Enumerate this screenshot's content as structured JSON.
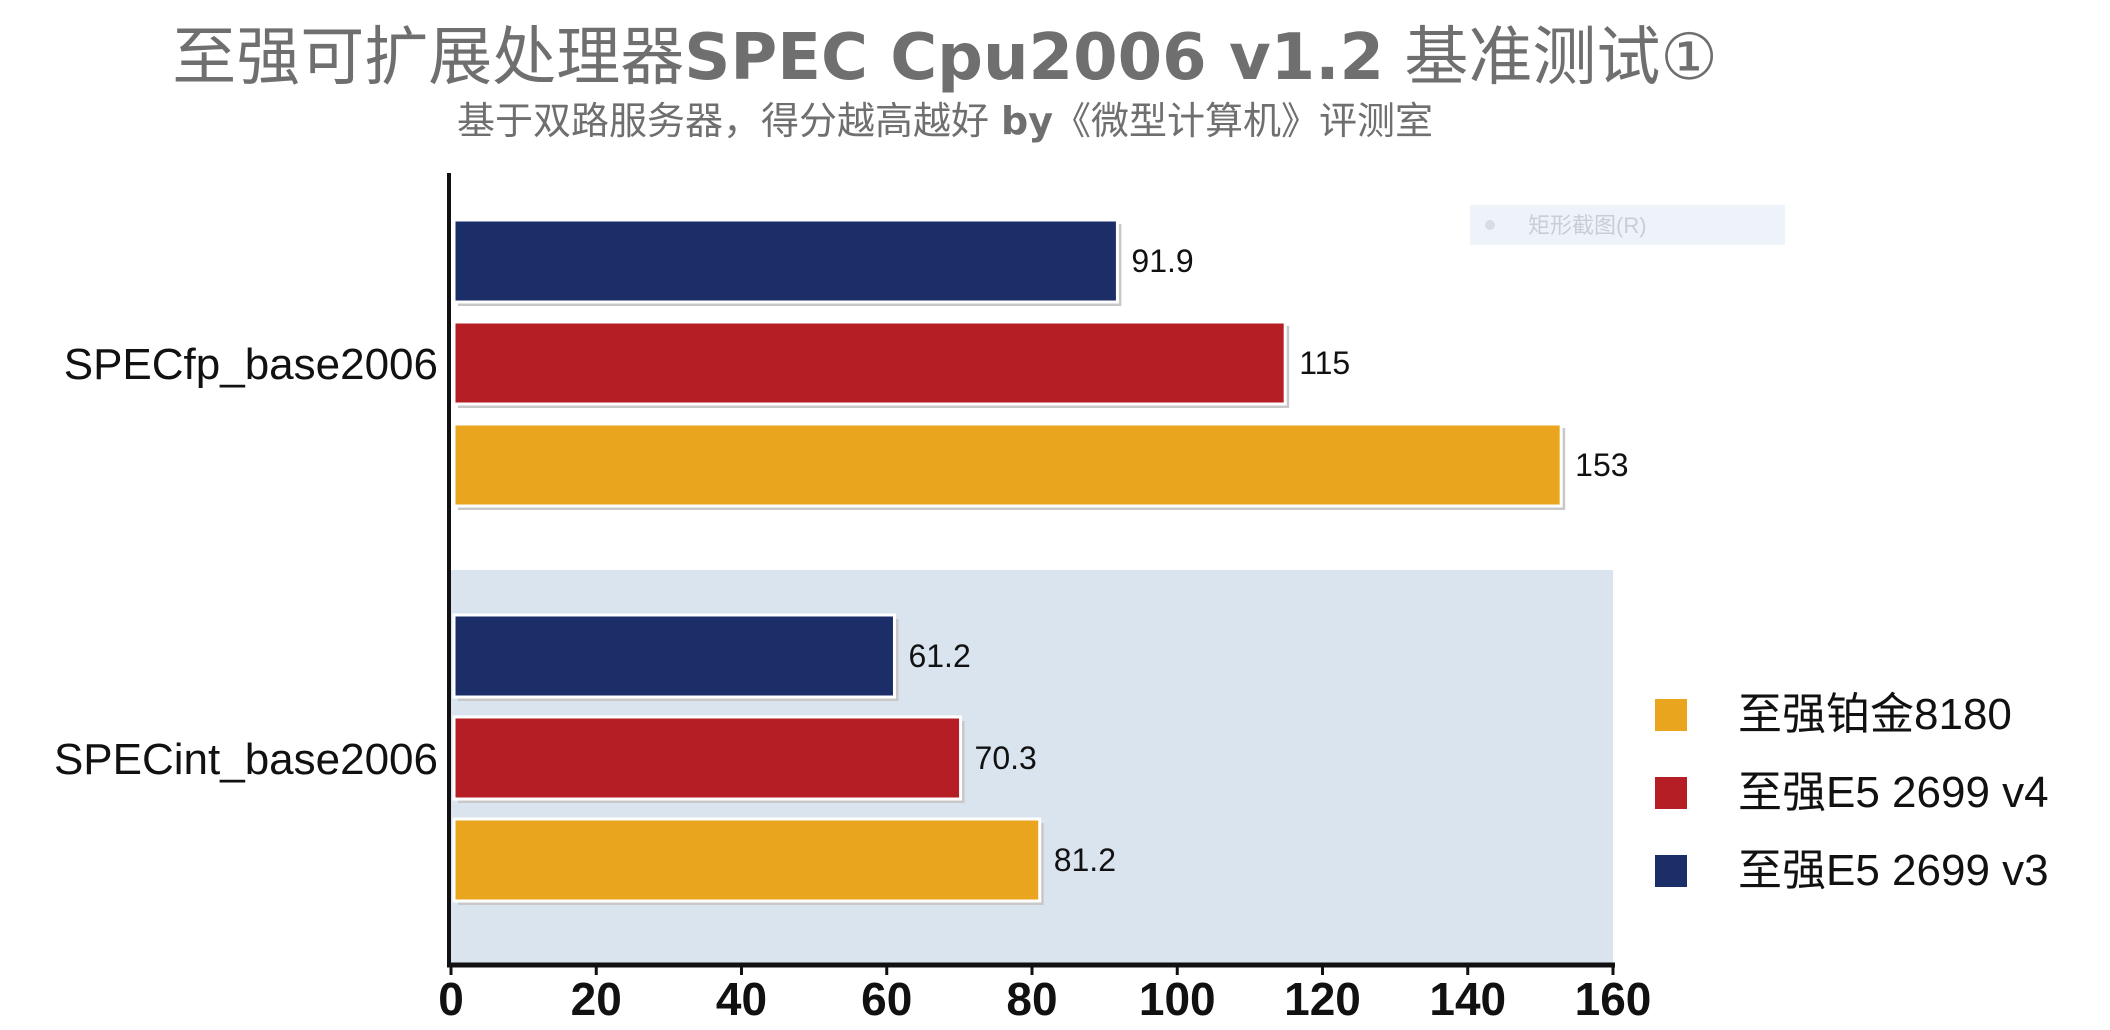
{
  "title": {
    "part1": "至强可扩展处理器",
    "part2": "SPEC Cpu2006 v1.2",
    "part3": " 基准测试①"
  },
  "subtitle": {
    "part1": "基于双路服务器，得分越高越好 ",
    "part2": "by",
    "part3": "《微型计算机》评测室"
  },
  "watermark": "矩形截图(R)",
  "colors": {
    "platinum_8180": "#e8a51d",
    "e5_2699_v4": "#b51e25",
    "e5_2699_v3": "#1c2e68",
    "highlight_band": "#d9e4ef",
    "text": "#111111"
  },
  "chart_data": {
    "type": "bar",
    "orientation": "horizontal",
    "categories": [
      "SPECfp_base2006",
      "SPECint_base2006"
    ],
    "series": [
      {
        "name": "至强E5 2699 v3",
        "color": "#1c2e68",
        "values": [
          91.9,
          61.2
        ],
        "labels": [
          "91.9",
          "61.2"
        ]
      },
      {
        "name": "至强E5 2699 v4",
        "color": "#b51e25",
        "values": [
          115,
          70.3
        ],
        "labels": [
          "115",
          "70.3"
        ]
      },
      {
        "name": "至强铂金8180",
        "color": "#e8a51d",
        "values": [
          153,
          81.2
        ],
        "labels": [
          "153",
          "81.2"
        ]
      }
    ],
    "xlim": [
      0,
      160
    ],
    "xticks": [
      "0",
      "20",
      "40",
      "60",
      "80",
      "100",
      "120",
      "140",
      "160"
    ],
    "legend": {
      "position": "right",
      "order": [
        "至强铂金8180",
        "至强E5 2699 v4",
        "至强E5 2699 v3"
      ]
    },
    "grid": false
  }
}
